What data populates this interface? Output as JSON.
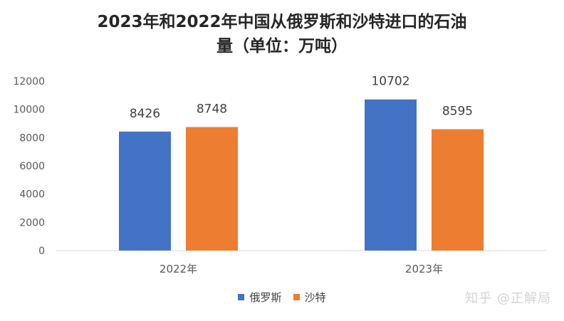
{
  "chart_data": {
    "type": "bar",
    "title_line1": "2023年和2022年中国从俄罗斯和沙特进口的石油",
    "title_line2": "量（单位：万吨）",
    "categories": [
      "2022年",
      "2023年"
    ],
    "series": [
      {
        "name": "俄罗斯",
        "color": "#4472c4",
        "values": [
          8426,
          10702
        ]
      },
      {
        "name": "沙特",
        "color": "#ed7d31",
        "values": [
          8748,
          8595
        ]
      }
    ],
    "ylim": [
      0,
      12000
    ],
    "yticks": [
      0,
      2000,
      4000,
      6000,
      8000,
      10000,
      12000
    ],
    "grid": false,
    "legend_position": "bottom",
    "data_labels": true
  },
  "watermark": "知乎 @正解局"
}
